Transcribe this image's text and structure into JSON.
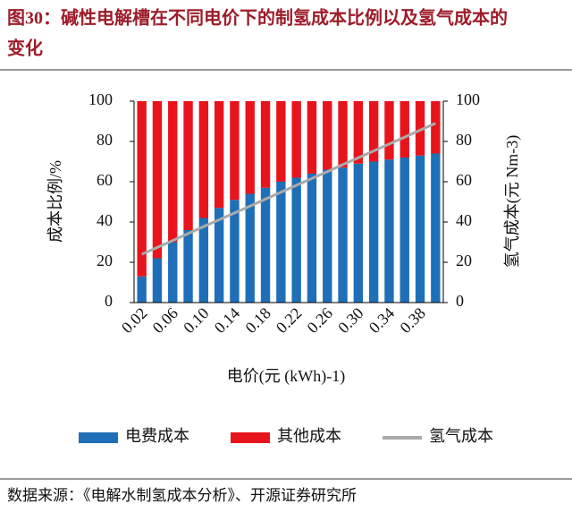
{
  "chart_data": {
    "type": "stacked-bar-line",
    "title": "图30：碱性电解槽在不同电价下的制氢成本比例以及氢气成本的变化",
    "xlabel": "电价(元 (kWh)-1)",
    "ylabel": "成本比例/%",
    "y2label": "氢气成本(元 Nm-3)",
    "source": "数据来源：《电解水制氢成本分析》、开源证券研究所",
    "categories": [
      "0.02",
      null,
      "0.06",
      null,
      "0.10",
      null,
      "0.14",
      null,
      "0.18",
      null,
      "0.22",
      null,
      "0.26",
      null,
      "0.30",
      null,
      "0.34",
      null,
      "0.38",
      null
    ],
    "series": [
      {
        "name": "电费成本",
        "color": "#1f6fb8",
        "values": [
          13,
          22,
          30,
          36,
          42,
          47,
          51,
          54,
          57,
          60,
          62,
          64,
          66,
          67,
          69,
          70,
          71,
          72,
          73,
          74
        ]
      },
      {
        "name": "其他成本",
        "color": "#e8141c",
        "values": [
          87,
          78,
          70,
          64,
          58,
          53,
          49,
          46,
          43,
          40,
          38,
          36,
          34,
          33,
          31,
          30,
          29,
          28,
          27,
          26
        ]
      },
      {
        "name": "氢气成本",
        "color": "#aaaaaa",
        "axis": "y2",
        "values": [
          24,
          27.4,
          30.8,
          34.3,
          37.7,
          41.1,
          44.5,
          47.9,
          51.4,
          54.8,
          58.2,
          61.6,
          65,
          68.5,
          71.9,
          75.3,
          78.7,
          82.1,
          85.6,
          89
        ]
      }
    ],
    "ylim": [
      0,
      100
    ],
    "yticks": [
      0,
      20,
      40,
      60,
      80,
      100
    ],
    "y2lim": [
      0,
      100
    ],
    "y2ticks": [
      0,
      20,
      40,
      60,
      80,
      100
    ]
  }
}
